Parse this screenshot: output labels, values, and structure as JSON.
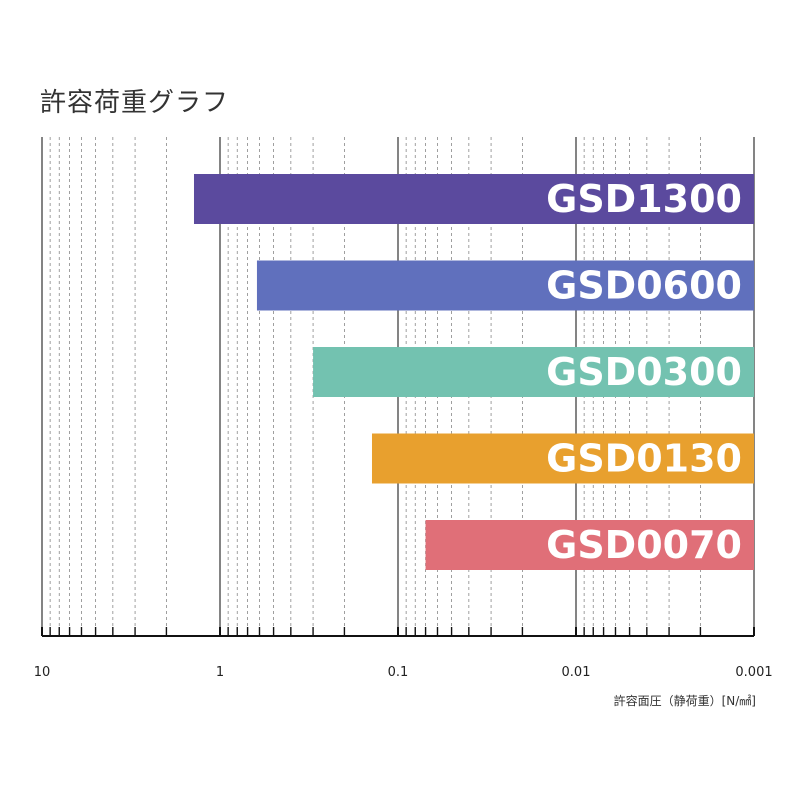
{
  "chart_data": {
    "type": "bar",
    "orientation": "horizontal",
    "title": "許容荷重グラフ",
    "xlabel": "許容面圧（静荷重）[N/㎟]",
    "x_scale": "log",
    "x_reversed": true,
    "xlim": [
      10,
      0.001
    ],
    "x_ticks": [
      {
        "value": 10,
        "label": "10"
      },
      {
        "value": 1,
        "label": "1"
      },
      {
        "value": 0.1,
        "label": "0.1"
      },
      {
        "value": 0.01,
        "label": "0.01"
      },
      {
        "value": 0.001,
        "label": "0.001"
      }
    ],
    "grid": true,
    "categories": [
      "GSD1300",
      "GSD0600",
      "GSD0300",
      "GSD0130",
      "GSD0070"
    ],
    "range_min": [
      0.001,
      0.001,
      0.001,
      0.001,
      0.001
    ],
    "range_max": [
      1.4,
      0.62,
      0.3,
      0.14,
      0.07
    ],
    "colors": [
      "#5b4a9e",
      "#6070bd",
      "#73c2b0",
      "#e8a02e",
      "#e06f78"
    ]
  }
}
